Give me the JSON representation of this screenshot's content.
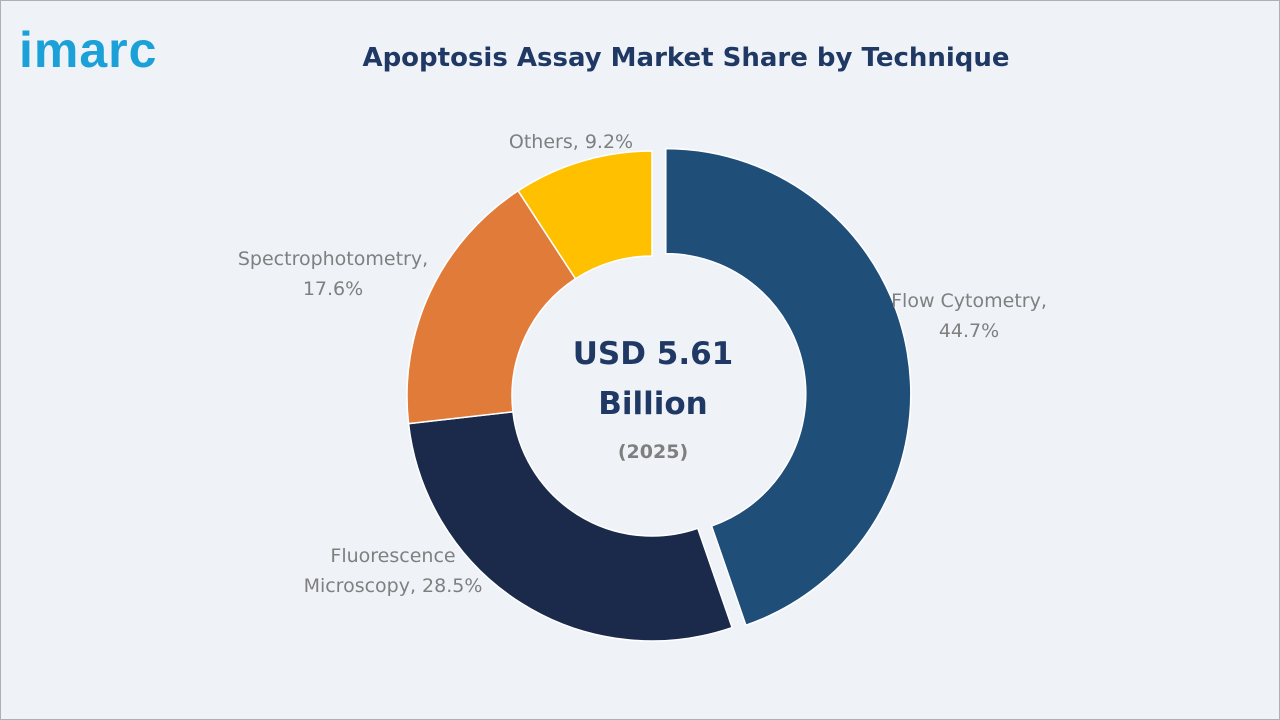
{
  "logo": "imarc",
  "chart_data": {
    "type": "donut",
    "title": "Apoptosis Assay Market Share by Technique",
    "values": [
      44.7,
      28.5,
      17.6,
      9.2
    ],
    "value_labels": [
      "Flow Cytometry, 44.7%",
      "Fluorescence Microscopy, 28.5%",
      "Spectrophotometry, 17.6%",
      "Others, 9.2%"
    ],
    "colors": [
      "#1f4e79",
      "#1b2a4a",
      "#e07b39",
      "#ffc000"
    ],
    "center_label": "USD 5.61 Billion",
    "center_sublabel": "(2025)"
  }
}
